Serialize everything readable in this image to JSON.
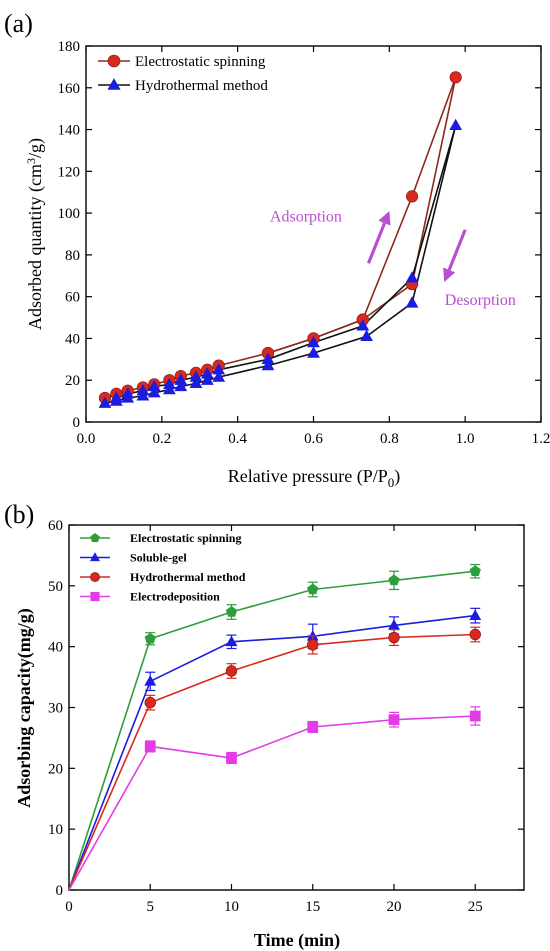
{
  "chart_data": [
    {
      "panel_label": "(a)",
      "type": "line",
      "xlabel": "Relative pressure (P/P",
      "xlabel_sub": "0",
      "xlabel_end": ")",
      "ylabel": "Adsorbed quantity (cm",
      "ylabel_sup": "3",
      "ylabel_end": "/g)",
      "xlim": [
        0.0,
        1.2
      ],
      "ylim": [
        0,
        180
      ],
      "xticks": [
        0.0,
        0.2,
        0.4,
        0.6,
        0.8,
        1.0,
        1.2
      ],
      "xtick_labels": [
        "0.0",
        "0.2",
        "0.4",
        "0.6",
        "0.8",
        "1.0",
        "1.2"
      ],
      "yticks": [
        0,
        20,
        40,
        60,
        80,
        100,
        120,
        140,
        160,
        180
      ],
      "ytick_labels": [
        "0",
        "20",
        "40",
        "60",
        "80",
        "100",
        "120",
        "140",
        "160",
        "180"
      ],
      "legend_position": "top-left",
      "series": [
        {
          "name": "Electrostatic spinning",
          "color": "#d9281d",
          "marker": "circle",
          "adsorption": {
            "x": [
              0.05,
              0.08,
              0.11,
              0.15,
              0.18,
              0.22,
              0.25,
              0.29,
              0.32,
              0.35,
              0.48,
              0.6,
              0.73,
              0.86,
              0.975
            ],
            "y": [
              11.5,
              13.5,
              15,
              16.5,
              18,
              20,
              22,
              23.5,
              25,
              27,
              33,
              40,
              49,
              66,
              165
            ]
          },
          "desorption": {
            "x": [
              0.975,
              0.86,
              0.73,
              0.6,
              0.48
            ],
            "y": [
              165,
              108,
              49,
              40,
              33
            ]
          },
          "line_color": "#8b2a1c"
        },
        {
          "name": "Hydrothermal method",
          "color": "#1c1ce0",
          "marker": "triangle",
          "adsorption": {
            "x": [
              0.05,
              0.08,
              0.11,
              0.15,
              0.18,
              0.22,
              0.25,
              0.29,
              0.32,
              0.35,
              0.48,
              0.6,
              0.74,
              0.86,
              0.975
            ],
            "y": [
              9,
              10,
              11.5,
              12.5,
              14,
              15.5,
              17,
              18.5,
              20,
              21.5,
              27,
              33,
              41,
              57,
              142
            ]
          },
          "desorption": {
            "x": [
              0.975,
              0.86,
              0.73,
              0.6,
              0.48,
              0.35,
              0.32,
              0.29,
              0.25,
              0.22,
              0.18,
              0.15,
              0.11,
              0.08
            ],
            "y": [
              142,
              69,
              46,
              38,
              30,
              25,
              23,
              21.5,
              20,
              18,
              17,
              15,
              13.5,
              11.5
            ]
          },
          "line_color": "#111111"
        }
      ],
      "annotations": [
        {
          "text": "Adsorption",
          "x": 0.58,
          "y": 96
        },
        {
          "text": "Desorption",
          "x": 1.04,
          "y": 56
        }
      ],
      "arrows": [
        {
          "from": [
            0.745,
            76
          ],
          "to": [
            0.8,
            101
          ]
        },
        {
          "from": [
            1.0,
            92
          ],
          "to": [
            0.945,
            67
          ]
        }
      ]
    },
    {
      "panel_label": "(b)",
      "type": "line",
      "xlabel": "Time (min)",
      "ylabel": "Adsorbing capacity(mg/g)",
      "xlim": [
        0,
        28
      ],
      "ylim": [
        0,
        60
      ],
      "xticks": [
        0,
        5,
        10,
        15,
        20,
        25
      ],
      "xtick_labels": [
        "0",
        "5",
        "10",
        "15",
        "20",
        "25"
      ],
      "yticks": [
        0,
        10,
        20,
        30,
        40,
        50,
        60
      ],
      "ytick_labels": [
        "0",
        "10",
        "20",
        "30",
        "40",
        "50",
        "60"
      ],
      "legend_position": "top-left",
      "x": [
        0,
        5,
        10,
        15,
        20,
        25
      ],
      "series": [
        {
          "name": "Electrostatic spinning",
          "color": "#2e9e3c",
          "marker": "pentagon",
          "values": [
            0,
            41.3,
            45.7,
            49.4,
            50.9,
            52.4
          ],
          "errors": [
            0,
            1.0,
            1.2,
            1.2,
            1.5,
            1.1
          ]
        },
        {
          "name": "Soluble-gel",
          "color": "#1c1ce0",
          "marker": "triangle",
          "values": [
            0,
            34.3,
            40.8,
            41.7,
            43.5,
            45.1
          ],
          "errors": [
            0,
            1.5,
            1.1,
            2.0,
            1.4,
            1.2
          ]
        },
        {
          "name": "Hydrothermal method",
          "color": "#d9281d",
          "marker": "circle",
          "values": [
            0,
            30.8,
            36.0,
            40.3,
            41.5,
            42.0
          ],
          "errors": [
            0,
            1.2,
            1.2,
            1.5,
            1.3,
            1.2
          ]
        },
        {
          "name": "Electrodeposition",
          "color": "#e23ce6",
          "marker": "square",
          "values": [
            0,
            23.6,
            21.7,
            26.8,
            28.0,
            28.6
          ],
          "errors": [
            0,
            0.9,
            0.9,
            0.9,
            1.2,
            1.5
          ]
        }
      ]
    }
  ]
}
